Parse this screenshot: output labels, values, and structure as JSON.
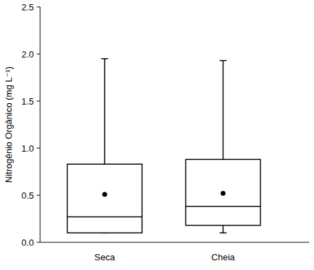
{
  "chart_data": {
    "type": "box",
    "y_label": "Nitrogênio Orgânico (mg  L⁻¹)",
    "categories": [
      "Seca",
      "Cheia"
    ],
    "min": [
      0.1,
      0.1
    ],
    "q1": [
      0.1,
      0.18
    ],
    "median": [
      0.27,
      0.38
    ],
    "q3": [
      0.83,
      0.88
    ],
    "max": [
      1.95,
      1.93
    ],
    "mean": [
      0.51,
      0.52
    ],
    "color": "#000000",
    "ylim": [
      0,
      2.5
    ],
    "yticks": [
      {
        "value": 0,
        "label": "0.0"
      },
      0.5,
      {
        "value": 1,
        "label": "1.0"
      },
      1.5,
      {
        "value": 2,
        "label": "2.0"
      },
      2.5
    ]
  }
}
